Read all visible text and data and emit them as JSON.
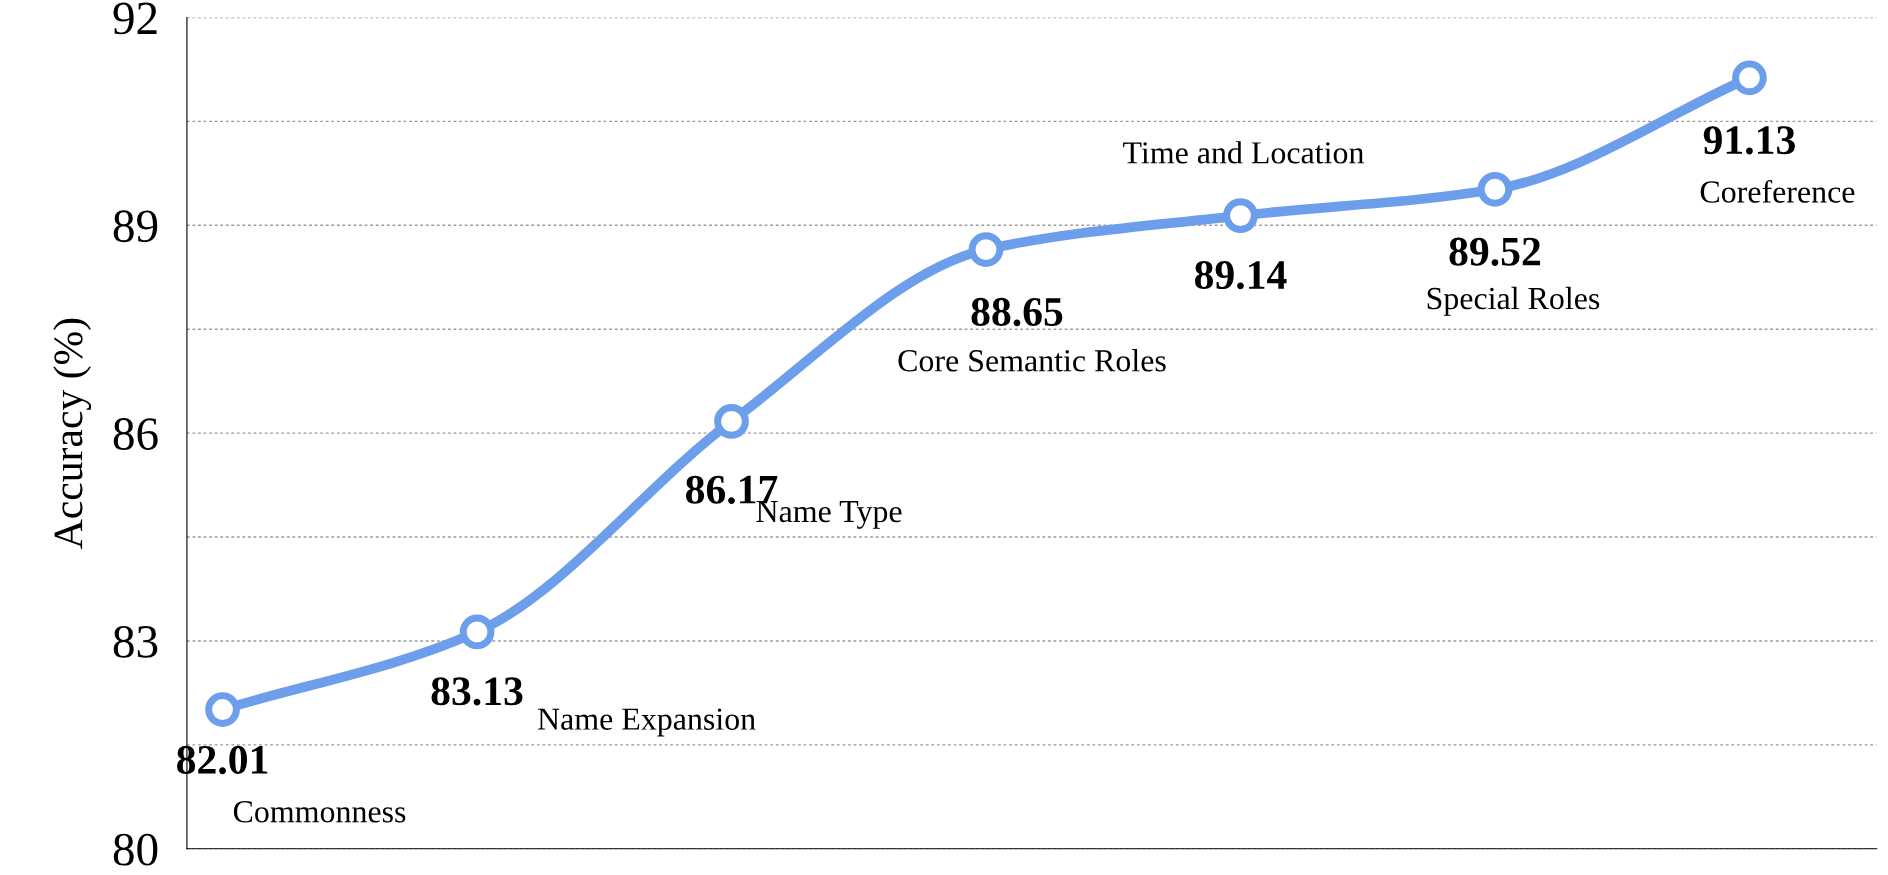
{
  "chart_data": {
    "type": "line",
    "ylabel": "Accuracy (%)",
    "categories": [
      null,
      null,
      null,
      null,
      null,
      null,
      null
    ],
    "series": [
      {
        "color": "#6d9eeb",
        "values": [
          82.01,
          83.13,
          86.17,
          88.65,
          89.14,
          89.52,
          91.13
        ]
      }
    ],
    "annotations": [
      "Commonness",
      "Name Expansion",
      "Name Type",
      "Core Semantic Roles",
      "Time and Location",
      "Special Roles",
      "Coreference"
    ],
    "ylim": [
      80,
      92
    ],
    "yticks": [
      80,
      {
        "value": 81.5,
        "label": null
      },
      83,
      {
        "value": 84.5,
        "label": null
      },
      86,
      {
        "value": 87.5,
        "label": null
      },
      89,
      {
        "value": 90.5,
        "label": null
      },
      92
    ],
    "grid": "y",
    "marker": "circle",
    "line_style": "solid",
    "data_labels": true
  }
}
